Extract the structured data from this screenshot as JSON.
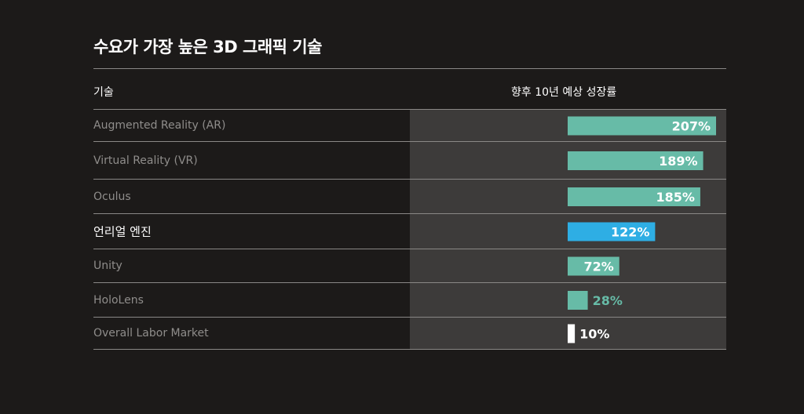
{
  "title": "수요가 가장 높은 3D 그래픽 기술",
  "columns": {
    "technology": "기술",
    "growth": "향후 10년 예상 성장률"
  },
  "chart_data": {
    "type": "bar",
    "orientation": "horizontal",
    "categories": [
      "Augmented Reality (AR)",
      "Virtual Reality (VR)",
      "Oculus",
      "언리얼 엔진",
      "Unity",
      "HoloLens",
      "Overall Labor Market"
    ],
    "values": [
      207,
      189,
      185,
      122,
      72,
      28,
      10
    ],
    "value_labels": [
      "207%",
      "189%",
      "185%",
      "122%",
      "72%",
      "28%",
      "10%"
    ],
    "highlighted": "언리얼 엔진",
    "xlim": [
      0,
      210
    ],
    "unit": "%"
  },
  "colors": {
    "default_bar": "#67bba7",
    "highlight_bar": "#2eaee4",
    "baseline_bar": "#ffffff",
    "background": "#1c1a19",
    "panel": "#3d3b3a",
    "muted_text": "#8f8d8b"
  }
}
